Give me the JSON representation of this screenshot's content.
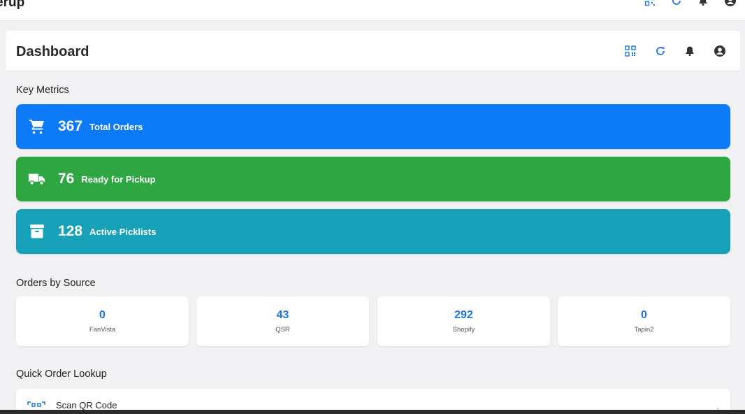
{
  "topbar": {
    "app_title": "erup"
  },
  "header": {
    "title": "Dashboard"
  },
  "sections": {
    "key_metrics": "Key Metrics",
    "orders_by_source": "Orders by Source",
    "quick_lookup": "Quick Order Lookup"
  },
  "metrics": [
    {
      "icon": "cart-icon",
      "value": "367",
      "label": "Total Orders",
      "color": "#0d7bf8"
    },
    {
      "icon": "truck-icon",
      "value": "76",
      "label": "Ready for Pickup",
      "color": "#2ea743"
    },
    {
      "icon": "archive-icon",
      "value": "128",
      "label": "Active Picklists",
      "color": "#16a1b8"
    }
  ],
  "sources": [
    {
      "value": "0",
      "label": "FanVista"
    },
    {
      "value": "43",
      "label": "QSR"
    },
    {
      "value": "292",
      "label": "Shopify"
    },
    {
      "value": "0",
      "label": "Tapin2"
    }
  ],
  "lookup": {
    "scan_label": "Scan QR Code",
    "chevron": "›"
  },
  "colors": {
    "accent": "#1a73e8",
    "icon_dark": "#333333"
  }
}
